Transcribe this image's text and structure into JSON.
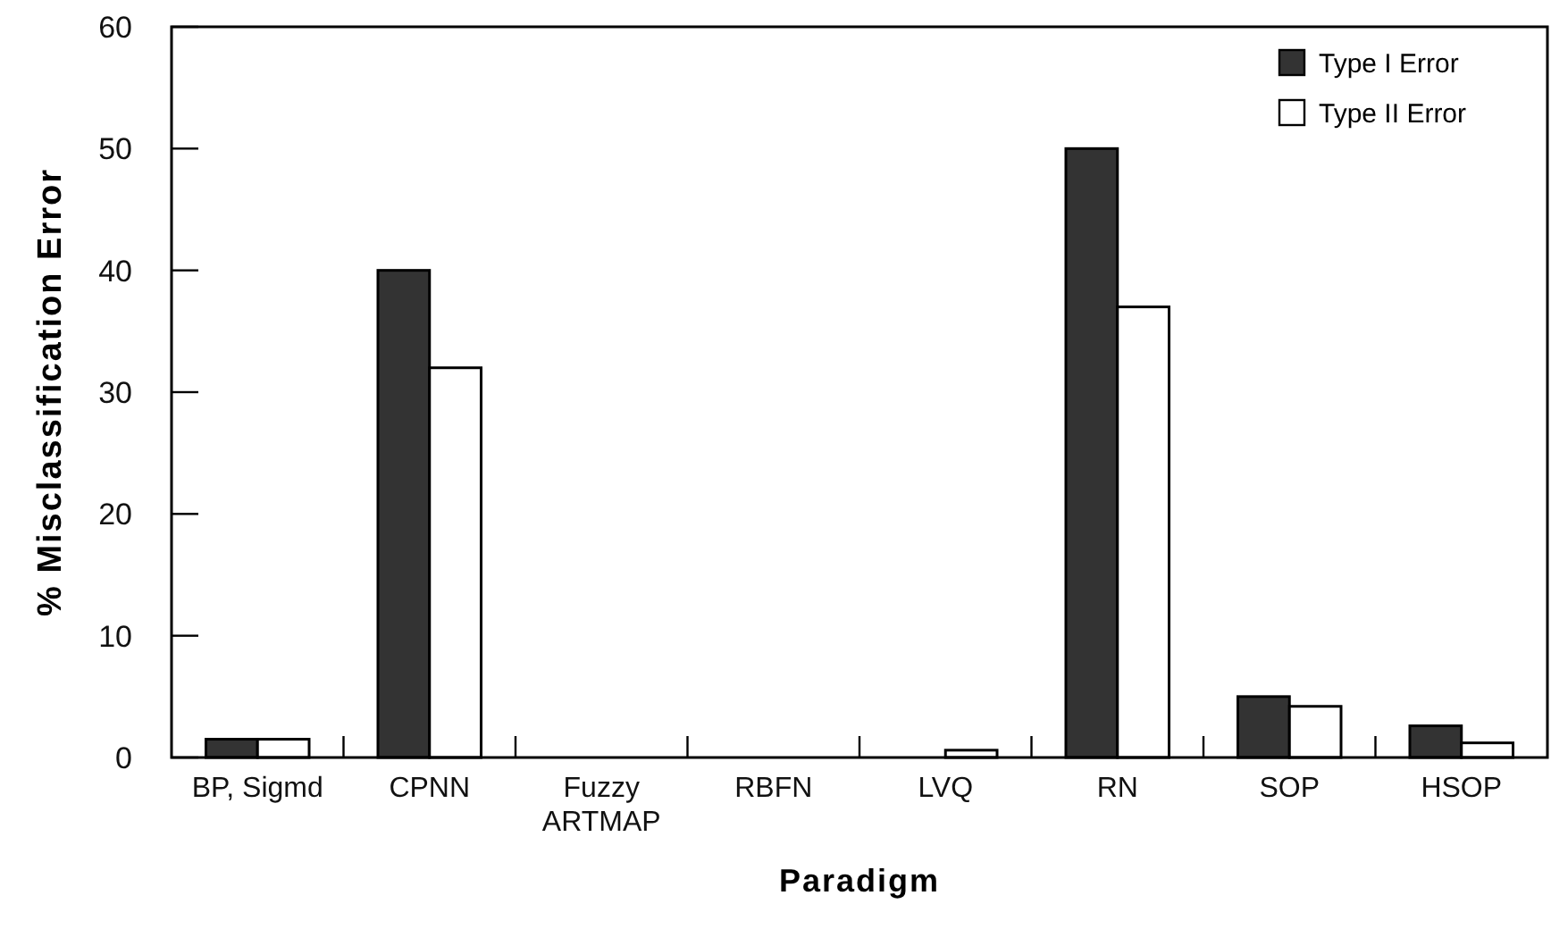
{
  "chart_data": {
    "type": "bar",
    "xlabel": "Paradigm",
    "ylabel": "% Misclassification Error",
    "categories": [
      "BP, Sigmd",
      "CPNN",
      "Fuzzy ARTMAP",
      "RBFN",
      "LVQ",
      "RN",
      "SOP",
      "HSOP"
    ],
    "series": [
      {
        "name": "Type I Error",
        "color": "#333333",
        "values": [
          1.5,
          40,
          0,
          0,
          0,
          50,
          5,
          2.6
        ]
      },
      {
        "name": "Type II Error",
        "color": "#ffffff",
        "values": [
          1.5,
          32,
          0,
          0,
          0.6,
          37,
          4.2,
          1.2
        ]
      }
    ],
    "ylim": [
      0,
      60
    ],
    "yticks": [
      0,
      10,
      20,
      30,
      40,
      50,
      60
    ],
    "grid": false,
    "legend": "top right"
  }
}
